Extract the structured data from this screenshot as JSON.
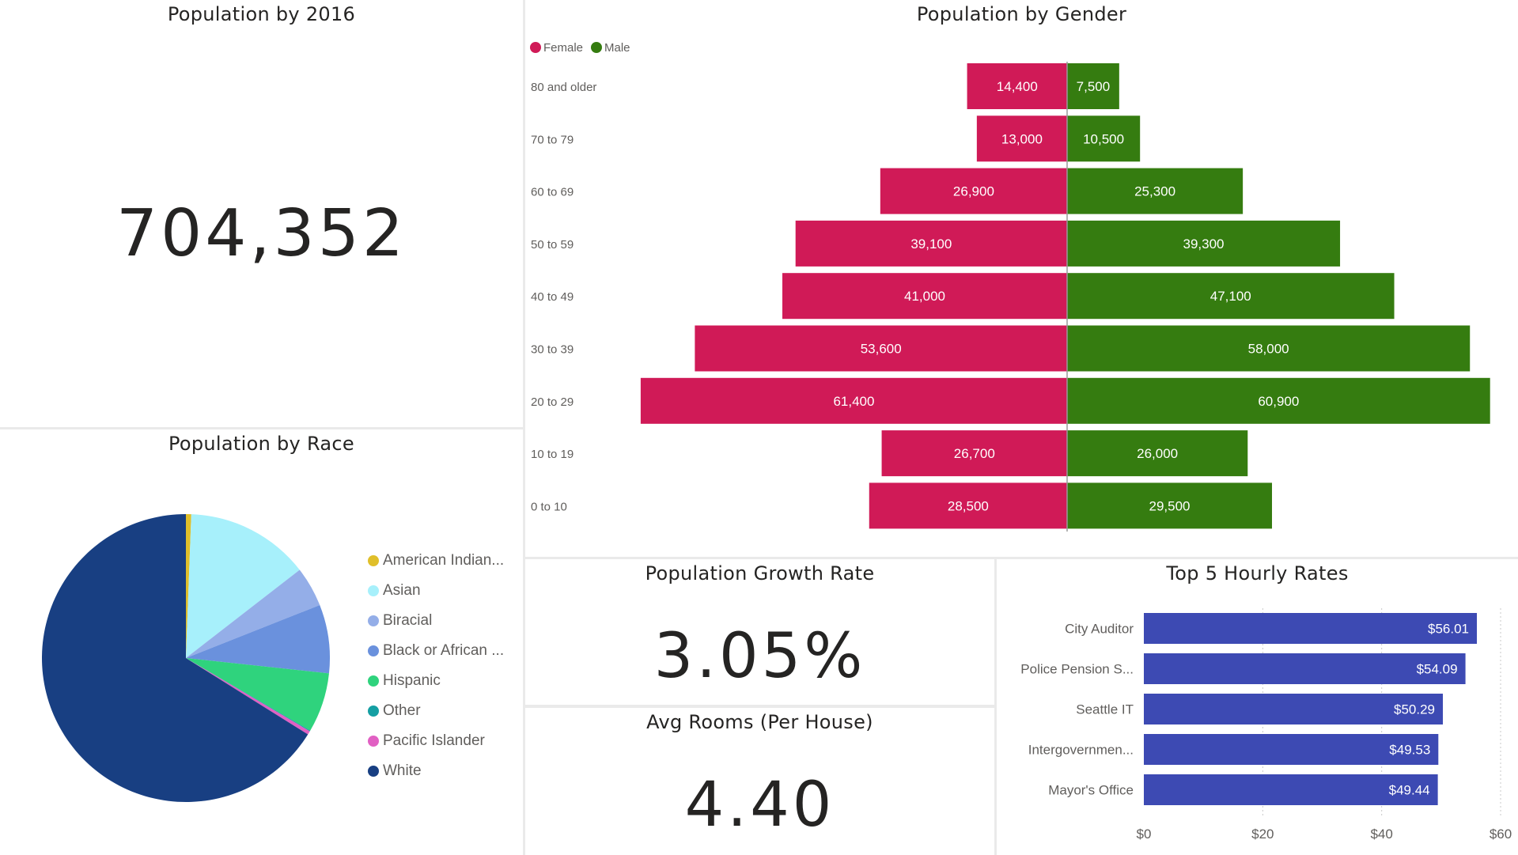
{
  "kpi_population": {
    "title": "Population by 2016",
    "value": "704,352"
  },
  "kpi_growth": {
    "title": "Population Growth Rate",
    "value": "3.05%"
  },
  "kpi_rooms": {
    "title": "Avg Rooms (Per House)",
    "value": "4.40"
  },
  "chart_data": [
    {
      "id": "gender",
      "type": "bar",
      "orientation": "horizontal-butterfly",
      "title": "Population by Gender",
      "categories": [
        "80 and older",
        "70 to 79",
        "60 to 69",
        "50 to 59",
        "40 to 49",
        "30 to 39",
        "20 to 29",
        "10 to 19",
        "0 to 10"
      ],
      "series": [
        {
          "name": "Female",
          "color": "#d01a57",
          "values": [
            14400,
            13000,
            26900,
            39100,
            41000,
            53600,
            61400,
            26700,
            28500
          ],
          "labels": [
            "14,400",
            "13,000",
            "26,900",
            "39,100",
            "41,000",
            "53,600",
            "61,400",
            "26,700",
            "28,500"
          ]
        },
        {
          "name": "Male",
          "color": "#357c10",
          "values": [
            7500,
            10500,
            25300,
            39300,
            47100,
            58000,
            60900,
            26000,
            29500
          ],
          "labels": [
            "7,500",
            "10,500",
            "25,300",
            "39,300",
            "47,100",
            "58,000",
            "60,900",
            "26,000",
            "29,500"
          ]
        }
      ],
      "legend": "top-left",
      "grid": false
    },
    {
      "id": "race",
      "type": "pie",
      "title": "Population by Race",
      "categories": [
        "American Indian...",
        "Asian",
        "Biracial",
        "Black or African ...",
        "Hispanic",
        "Other",
        "Pacific Islander",
        "White"
      ],
      "values": [
        0.6,
        13.9,
        4.5,
        7.7,
        6.7,
        0.1,
        0.4,
        66.1
      ],
      "colors": [
        "#e0bf2a",
        "#a7f0fb",
        "#94aee8",
        "#6a91dd",
        "#2fd37d",
        "#159fa3",
        "#e160c3",
        "#183f82"
      ],
      "legend": "right"
    },
    {
      "id": "hourly",
      "type": "bar",
      "orientation": "horizontal",
      "title": "Top 5 Hourly Rates",
      "categories": [
        "City Auditor",
        "Police Pension S...",
        "Seattle IT",
        "Intergovernmen...",
        "Mayor's Office"
      ],
      "values": [
        56.01,
        54.09,
        50.29,
        49.53,
        49.44
      ],
      "labels": [
        "$56.01",
        "$54.09",
        "$50.29",
        "$49.53",
        "$49.44"
      ],
      "color": "#3d4ab3",
      "xlim": [
        0,
        60
      ],
      "ticks": [
        0,
        20,
        40,
        60
      ],
      "tick_labels": [
        "$0",
        "$20",
        "$40",
        "$60"
      ],
      "grid": true
    }
  ]
}
